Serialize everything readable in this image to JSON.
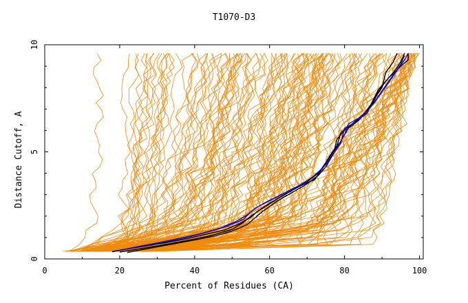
{
  "chart_data": {
    "type": "line",
    "title": "T1070-D3",
    "xlabel": "Percent of Residues (CA)",
    "ylabel": "Distance Cutoff, A",
    "xlim": [
      0,
      101
    ],
    "ylim": [
      0,
      10
    ],
    "x_ticks": [
      0,
      20,
      40,
      60,
      80,
      100
    ],
    "y_ticks": [
      0,
      5,
      10
    ],
    "colors": {
      "background_models": "#f08a0a",
      "highlight_black": "#000000",
      "highlight_blue": "#1010c8",
      "axes": "#000000"
    },
    "background_model_count": 160,
    "series": [
      {
        "name": "black-1",
        "color": "#000000",
        "points": [
          [
            18,
            0.35
          ],
          [
            25,
            0.55
          ],
          [
            32,
            0.75
          ],
          [
            38,
            0.95
          ],
          [
            43,
            1.15
          ],
          [
            48,
            1.35
          ],
          [
            52,
            1.65
          ],
          [
            55,
            1.95
          ],
          [
            57,
            2.25
          ],
          [
            60,
            2.6
          ],
          [
            64,
            3.0
          ],
          [
            68,
            3.4
          ],
          [
            72,
            3.7
          ],
          [
            74,
            4.2
          ],
          [
            76,
            4.8
          ],
          [
            78,
            5.3
          ],
          [
            79,
            5.9
          ],
          [
            82,
            6.3
          ],
          [
            86,
            6.8
          ],
          [
            88,
            7.5
          ],
          [
            90,
            8.0
          ],
          [
            91,
            8.7
          ],
          [
            93,
            9.2
          ],
          [
            94,
            9.6
          ]
        ]
      },
      {
        "name": "black-2",
        "color": "#000000",
        "points": [
          [
            22,
            0.3
          ],
          [
            28,
            0.5
          ],
          [
            35,
            0.72
          ],
          [
            41,
            0.92
          ],
          [
            46,
            1.1
          ],
          [
            50,
            1.3
          ],
          [
            54,
            1.6
          ],
          [
            56,
            1.9
          ],
          [
            58,
            2.2
          ],
          [
            62,
            2.7
          ],
          [
            66,
            3.1
          ],
          [
            70,
            3.5
          ],
          [
            73,
            3.9
          ],
          [
            75,
            4.3
          ],
          [
            77,
            4.9
          ],
          [
            78,
            5.6
          ],
          [
            80,
            6.0
          ],
          [
            84,
            6.6
          ],
          [
            87,
            7.1
          ],
          [
            89,
            7.8
          ],
          [
            91,
            8.3
          ],
          [
            93,
            8.7
          ],
          [
            95,
            9.2
          ],
          [
            96,
            9.6
          ]
        ]
      },
      {
        "name": "black-3",
        "color": "#000000",
        "points": [
          [
            20,
            0.32
          ],
          [
            27,
            0.52
          ],
          [
            34,
            0.73
          ],
          [
            40,
            0.93
          ],
          [
            45,
            1.12
          ],
          [
            50,
            1.38
          ],
          [
            53,
            1.7
          ],
          [
            55,
            2.0
          ],
          [
            58,
            2.35
          ],
          [
            62,
            2.8
          ],
          [
            66,
            3.2
          ],
          [
            70,
            3.6
          ],
          [
            73,
            4.0
          ],
          [
            75,
            4.5
          ],
          [
            77,
            5.0
          ],
          [
            79,
            5.5
          ],
          [
            81,
            6.1
          ],
          [
            84,
            6.5
          ],
          [
            87,
            7.2
          ],
          [
            89,
            7.9
          ],
          [
            92,
            8.5
          ],
          [
            95,
            9.0
          ],
          [
            97,
            9.3
          ],
          [
            97,
            9.6
          ]
        ]
      },
      {
        "name": "blue-1",
        "color": "#1010c8",
        "points": [
          [
            18,
            0.33
          ],
          [
            24,
            0.55
          ],
          [
            31,
            0.78
          ],
          [
            37,
            1.0
          ],
          [
            42,
            1.2
          ],
          [
            47,
            1.45
          ],
          [
            51,
            1.75
          ],
          [
            54,
            2.05
          ],
          [
            56,
            2.35
          ],
          [
            59,
            2.65
          ],
          [
            63,
            3.0
          ],
          [
            67,
            3.35
          ],
          [
            71,
            3.75
          ],
          [
            74,
            4.2
          ],
          [
            76,
            4.7
          ],
          [
            78,
            5.2
          ],
          [
            80,
            5.8
          ],
          [
            81,
            6.3
          ],
          [
            84,
            6.6
          ],
          [
            86,
            6.9
          ],
          [
            88,
            7.3
          ],
          [
            90,
            7.8
          ],
          [
            92,
            8.3
          ],
          [
            94,
            8.8
          ],
          [
            96,
            9.3
          ],
          [
            97,
            9.6
          ]
        ]
      },
      {
        "name": "blue-2",
        "color": "#1010c8",
        "points": [
          [
            19,
            0.36
          ],
          [
            26,
            0.6
          ],
          [
            33,
            0.82
          ],
          [
            39,
            1.05
          ],
          [
            44,
            1.28
          ],
          [
            49,
            1.55
          ],
          [
            53,
            1.85
          ],
          [
            55,
            2.2
          ],
          [
            57,
            2.45
          ],
          [
            61,
            2.8
          ],
          [
            65,
            3.15
          ],
          [
            69,
            3.5
          ],
          [
            72,
            3.9
          ],
          [
            75,
            4.4
          ],
          [
            77,
            4.9
          ],
          [
            79,
            5.4
          ],
          [
            80,
            6.1
          ],
          [
            83,
            6.4
          ],
          [
            85,
            6.7
          ],
          [
            87,
            7.1
          ],
          [
            89,
            7.6
          ],
          [
            91,
            8.1
          ],
          [
            93,
            8.6
          ],
          [
            95,
            9.1
          ],
          [
            96,
            9.5
          ]
        ]
      }
    ]
  }
}
